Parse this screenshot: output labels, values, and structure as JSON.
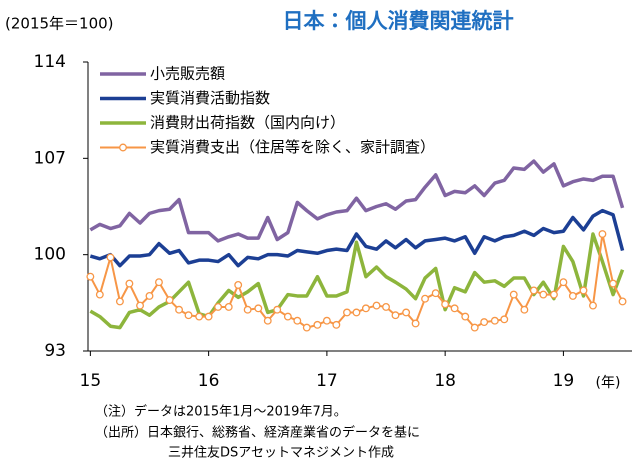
{
  "chart_data": {
    "type": "line",
    "title": "日本：個人消費関連統計",
    "y_unit_label": "(2015年＝100)",
    "x_label": "(年)",
    "notes": [
      "（注）データは2015年1月～2019年7月。",
      "（出所）日本銀行、総務省、経済産業省のデータを基に",
      "三井住友DSアセットマネジメント作成"
    ],
    "x": [
      2015,
      2015.08,
      2015.17,
      2015.25,
      2015.33,
      2015.42,
      2015.5,
      2015.58,
      2015.67,
      2015.75,
      2015.83,
      2015.92,
      2016,
      2016.08,
      2016.17,
      2016.25,
      2016.33,
      2016.42,
      2016.5,
      2016.58,
      2016.67,
      2016.75,
      2016.83,
      2016.92,
      2017,
      2017.08,
      2017.17,
      2017.25,
      2017.33,
      2017.42,
      2017.5,
      2017.58,
      2017.67,
      2017.75,
      2017.83,
      2017.92,
      2018,
      2018.08,
      2018.17,
      2018.25,
      2018.33,
      2018.42,
      2018.5,
      2018.58,
      2018.67,
      2018.75,
      2018.83,
      2018.92,
      2019,
      2019.08,
      2019.17,
      2019.25,
      2019.33,
      2019.42,
      2019.5
    ],
    "xlim": [
      2014.98,
      2019.58
    ],
    "xticks": [
      {
        "value": 2015,
        "label": "15"
      },
      {
        "value": 2016,
        "label": "16"
      },
      {
        "value": 2017,
        "label": "17"
      },
      {
        "value": 2018,
        "label": "18"
      },
      {
        "value": 2019,
        "label": "19"
      }
    ],
    "ylim": [
      93,
      114
    ],
    "yticks": [
      93,
      100,
      107,
      114
    ],
    "grid": false,
    "legend": "upper left",
    "series": [
      {
        "name": "小売販売額",
        "color": "#8064a2",
        "marker": "none",
        "values": [
          101.8,
          102.2,
          101.9,
          102.1,
          103.0,
          102.3,
          103.0,
          103.2,
          103.3,
          104.0,
          101.6,
          101.6,
          101.6,
          101.0,
          101.3,
          101.5,
          101.2,
          101.2,
          102.7,
          101.1,
          101.6,
          103.8,
          103.2,
          102.6,
          102.9,
          103.1,
          103.2,
          104.1,
          103.2,
          103.5,
          103.7,
          103.3,
          103.9,
          104.0,
          104.9,
          105.8,
          104.3,
          104.6,
          104.5,
          105.0,
          104.3,
          105.2,
          105.4,
          106.3,
          106.2,
          106.8,
          106.0,
          106.6,
          105.0,
          105.3,
          105.5,
          105.4,
          105.7,
          105.7,
          103.4
        ]
      },
      {
        "name": "実質消費活動指数",
        "color": "#1c3f94",
        "marker": "none",
        "values": [
          99.9,
          99.7,
          100.0,
          99.2,
          99.9,
          99.9,
          100.0,
          100.8,
          100.1,
          100.3,
          99.4,
          99.6,
          99.6,
          99.5,
          100.0,
          99.2,
          99.8,
          99.7,
          100.0,
          100.0,
          99.9,
          100.3,
          100.2,
          100.1,
          100.3,
          100.4,
          100.3,
          101.5,
          100.6,
          100.4,
          101.0,
          100.5,
          101.1,
          100.5,
          101.0,
          101.1,
          101.2,
          101.0,
          101.3,
          100.1,
          101.3,
          101.0,
          101.3,
          101.4,
          101.7,
          101.4,
          101.9,
          101.6,
          101.7,
          102.7,
          101.8,
          102.8,
          103.2,
          102.9,
          100.3
        ]
      },
      {
        "name": "消費財出荷指数（国内向け）",
        "color": "#8db53c",
        "marker": "none",
        "values": [
          95.9,
          95.5,
          94.8,
          94.7,
          95.8,
          96.0,
          95.6,
          96.2,
          96.6,
          97.3,
          98.0,
          95.7,
          95.5,
          96.5,
          97.4,
          96.9,
          97.3,
          97.9,
          95.8,
          96.0,
          97.1,
          97.0,
          97.0,
          98.4,
          97.0,
          97.0,
          97.3,
          100.9,
          98.4,
          99.1,
          98.4,
          98.0,
          97.5,
          96.8,
          98.3,
          99.0,
          96.0,
          97.6,
          97.3,
          98.7,
          98.0,
          98.1,
          97.7,
          98.3,
          98.3,
          97.1,
          98.0,
          96.8,
          100.6,
          99.5,
          97.0,
          101.5,
          99.5,
          97.1,
          98.9
        ]
      },
      {
        "name": "実質消費支出（住居等を除く、家計調査）",
        "color": "#f79646",
        "marker": "circle",
        "values": [
          98.4,
          97.1,
          99.8,
          96.6,
          97.9,
          96.3,
          97.0,
          98.0,
          96.7,
          96.0,
          95.6,
          95.5,
          95.5,
          96.2,
          96.2,
          97.8,
          96.0,
          96.1,
          95.2,
          96.0,
          95.5,
          95.2,
          94.7,
          94.9,
          95.2,
          94.9,
          95.8,
          95.8,
          96.1,
          96.3,
          96.2,
          95.6,
          95.8,
          95.0,
          96.8,
          97.2,
          96.4,
          96.1,
          95.5,
          94.7,
          95.1,
          95.2,
          95.3,
          97.1,
          96.0,
          97.4,
          97.1,
          97.1,
          98.0,
          97.0,
          97.4,
          96.3,
          101.5,
          97.9,
          96.6
        ]
      }
    ]
  }
}
